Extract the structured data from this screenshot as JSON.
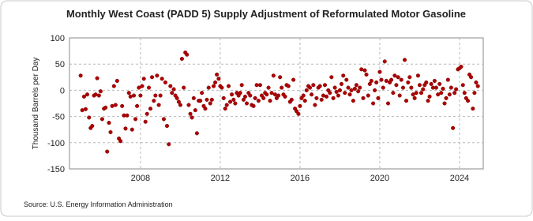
{
  "chart_data": {
    "type": "scatter",
    "title": "Monthly West Coast (PADD 5) Supply Adjustment of Reformulated Motor Gasoline",
    "y_label": "Thousand Barrels per Day",
    "source": "Source: U.S. Energy Information Administration",
    "color": "#b00000",
    "grid": true,
    "xlim": [
      2004.44,
      2025.19
    ],
    "xticks": [
      2008,
      2012,
      2016,
      2020,
      2024
    ],
    "ylim": [
      -150,
      100
    ],
    "yticks": [
      -150,
      -100,
      -50,
      0,
      50,
      100
    ],
    "x": [
      2005.0,
      2005.08,
      2005.17,
      2005.25,
      2005.33,
      2005.42,
      2005.5,
      2005.58,
      2005.67,
      2005.75,
      2005.83,
      2005.92,
      2006.0,
      2006.08,
      2006.17,
      2006.25,
      2006.33,
      2006.42,
      2006.5,
      2006.58,
      2006.67,
      2006.75,
      2006.83,
      2006.92,
      2007.0,
      2007.08,
      2007.17,
      2007.25,
      2007.33,
      2007.42,
      2007.5,
      2007.58,
      2007.67,
      2007.75,
      2007.83,
      2007.92,
      2008.0,
      2008.08,
      2008.17,
      2008.25,
      2008.33,
      2008.42,
      2008.5,
      2008.58,
      2008.67,
      2008.75,
      2008.83,
      2008.92,
      2009.0,
      2009.08,
      2009.17,
      2009.25,
      2009.33,
      2009.42,
      2009.5,
      2009.58,
      2009.67,
      2009.75,
      2009.83,
      2009.92,
      2010.0,
      2010.08,
      2010.17,
      2010.25,
      2010.33,
      2010.42,
      2010.5,
      2010.58,
      2010.67,
      2010.75,
      2010.83,
      2010.92,
      2011.0,
      2011.08,
      2011.17,
      2011.25,
      2011.33,
      2011.42,
      2011.5,
      2011.58,
      2011.67,
      2011.75,
      2011.83,
      2011.92,
      2012.0,
      2012.08,
      2012.17,
      2012.25,
      2012.33,
      2012.42,
      2012.5,
      2012.58,
      2012.67,
      2012.75,
      2012.83,
      2012.92,
      2013.0,
      2013.08,
      2013.17,
      2013.25,
      2013.33,
      2013.42,
      2013.5,
      2013.58,
      2013.67,
      2013.75,
      2013.83,
      2013.92,
      2014.0,
      2014.08,
      2014.17,
      2014.25,
      2014.33,
      2014.42,
      2014.5,
      2014.58,
      2014.67,
      2014.75,
      2014.83,
      2014.92,
      2015.0,
      2015.08,
      2015.17,
      2015.25,
      2015.33,
      2015.42,
      2015.5,
      2015.58,
      2015.67,
      2015.75,
      2015.83,
      2015.92,
      2016.0,
      2016.08,
      2016.17,
      2016.25,
      2016.33,
      2016.42,
      2016.5,
      2016.58,
      2016.67,
      2016.75,
      2016.83,
      2016.92,
      2017.0,
      2017.08,
      2017.17,
      2017.25,
      2017.33,
      2017.42,
      2017.5,
      2017.58,
      2017.67,
      2017.75,
      2017.83,
      2017.92,
      2018.0,
      2018.08,
      2018.17,
      2018.25,
      2018.33,
      2018.42,
      2018.5,
      2018.58,
      2018.67,
      2018.75,
      2018.83,
      2018.92,
      2019.0,
      2019.08,
      2019.17,
      2019.25,
      2019.33,
      2019.42,
      2019.5,
      2019.58,
      2019.67,
      2019.75,
      2019.83,
      2019.92,
      2020.0,
      2020.08,
      2020.17,
      2020.25,
      2020.33,
      2020.42,
      2020.5,
      2020.58,
      2020.67,
      2020.75,
      2020.83,
      2020.92,
      2021.0,
      2021.08,
      2021.17,
      2021.25,
      2021.33,
      2021.42,
      2021.5,
      2021.58,
      2021.67,
      2021.75,
      2021.83,
      2021.92,
      2022.0,
      2022.08,
      2022.17,
      2022.25,
      2022.33,
      2022.42,
      2022.5,
      2022.58,
      2022.67,
      2022.75,
      2022.83,
      2022.92,
      2023.0,
      2023.08,
      2023.17,
      2023.25,
      2023.33,
      2023.42,
      2023.5,
      2023.58,
      2023.67,
      2023.75,
      2023.83,
      2023.92,
      2024.0,
      2024.08,
      2024.17,
      2024.25,
      2024.33,
      2024.42,
      2024.5,
      2024.58,
      2024.67,
      2024.75,
      2024.83,
      2024.92
    ],
    "values": [
      28,
      -38,
      -12,
      -36,
      -8,
      -52,
      -72,
      -68,
      -10,
      -8,
      23,
      -10,
      -2,
      -55,
      -35,
      -33,
      -117,
      -62,
      -80,
      -30,
      8,
      -28,
      18,
      -92,
      -97,
      -30,
      -48,
      -73,
      -48,
      -5,
      -12,
      -75,
      -10,
      -55,
      -30,
      5,
      -10,
      8,
      22,
      -60,
      -45,
      5,
      -35,
      25,
      -20,
      -10,
      28,
      -28,
      -10,
      22,
      -55,
      15,
      -68,
      -103,
      8,
      -5,
      2,
      -10,
      -15,
      -22,
      -28,
      60,
      5,
      72,
      68,
      -28,
      -45,
      -52,
      -15,
      -38,
      -82,
      -20,
      -20,
      -5,
      -30,
      -35,
      -18,
      5,
      -25,
      -18,
      8,
      15,
      30,
      22,
      8,
      5,
      -15,
      -35,
      -28,
      8,
      -22,
      -8,
      -18,
      -25,
      -5,
      -10,
      -5,
      10,
      -18,
      -12,
      -25,
      -5,
      -10,
      -28,
      -30,
      -15,
      10,
      -20,
      10,
      -10,
      -15,
      -5,
      -8,
      5,
      -20,
      -5,
      28,
      -8,
      -15,
      -10,
      25,
      5,
      -8,
      -12,
      10,
      8,
      -22,
      -18,
      20,
      -35,
      -40,
      -45,
      -30,
      -15,
      -10,
      -20,
      0,
      8,
      5,
      -8,
      10,
      -28,
      -15,
      5,
      8,
      -18,
      -10,
      10,
      -12,
      0,
      -5,
      25,
      -15,
      5,
      -3,
      -10,
      0,
      12,
      28,
      -5,
      20,
      5,
      -8,
      0,
      -20,
      3,
      10,
      -2,
      5,
      40,
      -15,
      38,
      30,
      -10,
      12,
      18,
      -25,
      0,
      15,
      -15,
      35,
      20,
      5,
      55,
      18,
      -25,
      15,
      20,
      -5,
      28,
      10,
      25,
      -10,
      20,
      5,
      58,
      -20,
      15,
      25,
      5,
      -8,
      -15,
      -5,
      28,
      10,
      -5,
      2,
      10,
      15,
      -20,
      -12,
      12,
      5,
      18,
      5,
      -8,
      12,
      -5,
      3,
      -25,
      -15,
      20,
      -8,
      5,
      -72,
      -5,
      2,
      40,
      42,
      45,
      10,
      -5,
      -15,
      -20,
      30,
      25,
      -35,
      -5,
      15,
      8
    ]
  }
}
